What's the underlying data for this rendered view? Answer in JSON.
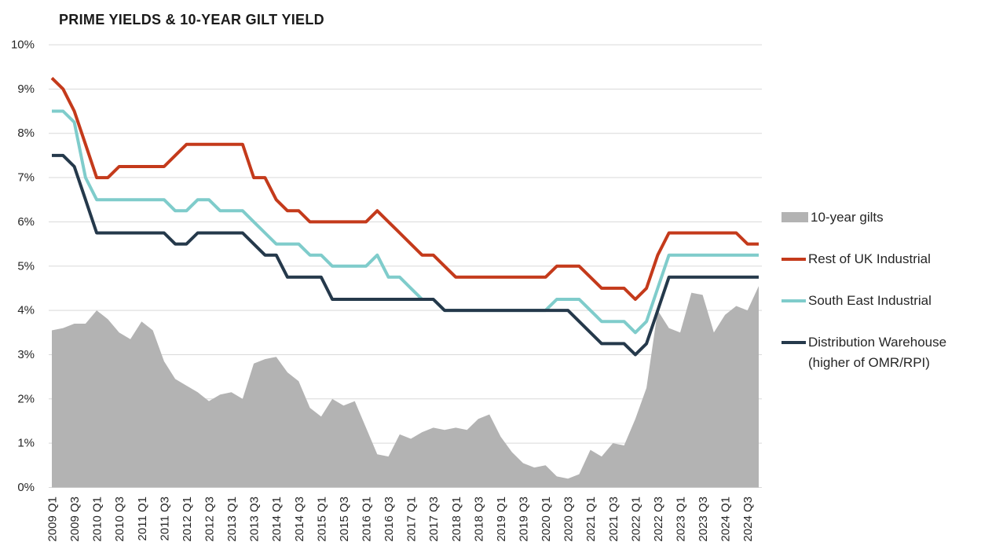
{
  "title": "PRIME YIELDS & 10-YEAR GILT YIELD",
  "colors": {
    "gilts_area": "#b3b3b3",
    "rest_of_uk": "#c43a1b",
    "south_east": "#7fcccb",
    "distribution": "#25394b",
    "gridline": "#d9d9d9",
    "axis_text": "#262626",
    "title_text": "#1a1a1a"
  },
  "legend": {
    "items": [
      {
        "label": "10-year gilts",
        "swatch": "area",
        "color": "#b3b3b3"
      },
      {
        "label": "Rest of UK Industrial",
        "swatch": "line",
        "color": "#c43a1b"
      },
      {
        "label": "South East Industrial",
        "swatch": "line",
        "color": "#7fcccb"
      },
      {
        "label": "Distribution Warehouse\n(higher of OMR/RPI)",
        "swatch": "line",
        "color": "#25394b"
      }
    ]
  },
  "chart_data": {
    "type": "area+line",
    "title": "PRIME YIELDS & 10-YEAR GILT YIELD",
    "ylim": [
      0,
      10
    ],
    "grid": true,
    "legend_position": "right",
    "y_tick_labels": [
      "0%",
      "1%",
      "2%",
      "3%",
      "4%",
      "5%",
      "6%",
      "7%",
      "8%",
      "9%",
      "10%"
    ],
    "x_labels": [
      "2009 Q1",
      "2009 Q3",
      "2010 Q1",
      "2010 Q3",
      "2011 Q1",
      "2011 Q3",
      "2012 Q1",
      "2012 Q3",
      "2013 Q1",
      "2013 Q3",
      "2014 Q1",
      "2014 Q3",
      "2015 Q1",
      "2015 Q3",
      "2016 Q1",
      "2016 Q3",
      "2017 Q1",
      "2017 Q3",
      "2018 Q1",
      "2018 Q3",
      "2019 Q1",
      "2019 Q3",
      "2020 Q1",
      "2020 Q3",
      "2021 Q1",
      "2021 Q3",
      "2022 Q1",
      "2022 Q3",
      "2023 Q1",
      "2023 Q3",
      "2024 Q1",
      "2024 Q3"
    ],
    "x_range_quarterly": "2009 Q1 to 2024 Q4",
    "series": [
      {
        "name": "10-year gilts",
        "type": "area",
        "color": "#b3b3b3",
        "values": [
          3.55,
          3.6,
          3.7,
          3.7,
          4.0,
          3.8,
          3.5,
          3.35,
          3.75,
          3.55,
          2.85,
          2.45,
          2.3,
          2.15,
          1.95,
          2.1,
          2.15,
          2.0,
          2.8,
          2.9,
          2.95,
          2.6,
          2.4,
          1.8,
          1.6,
          2.0,
          1.85,
          1.95,
          1.35,
          0.75,
          0.7,
          1.2,
          1.1,
          1.25,
          1.35,
          1.3,
          1.35,
          1.3,
          1.55,
          1.65,
          1.15,
          0.8,
          0.55,
          0.45,
          0.5,
          0.25,
          0.2,
          0.3,
          0.85,
          0.7,
          1.0,
          0.95,
          1.55,
          2.25,
          4.0,
          3.6,
          3.5,
          4.4,
          4.35,
          3.5,
          3.9,
          4.1,
          4.0,
          4.55
        ]
      },
      {
        "name": "Rest of UK Industrial",
        "type": "line",
        "color": "#c43a1b",
        "values": [
          9.25,
          9.0,
          8.5,
          7.75,
          7.0,
          7.0,
          7.25,
          7.25,
          7.25,
          7.25,
          7.25,
          7.5,
          7.75,
          7.75,
          7.75,
          7.75,
          7.75,
          7.75,
          7.0,
          7.0,
          6.5,
          6.25,
          6.25,
          6.0,
          6.0,
          6.0,
          6.0,
          6.0,
          6.0,
          6.25,
          6.0,
          5.75,
          5.5,
          5.25,
          5.25,
          5.0,
          4.75,
          4.75,
          4.75,
          4.75,
          4.75,
          4.75,
          4.75,
          4.75,
          4.75,
          5.0,
          5.0,
          5.0,
          4.75,
          4.5,
          4.5,
          4.5,
          4.25,
          4.5,
          5.25,
          5.75,
          5.75,
          5.75,
          5.75,
          5.75,
          5.75,
          5.75,
          5.5,
          5.5
        ]
      },
      {
        "name": "South East Industrial",
        "type": "line",
        "color": "#7fcccb",
        "values": [
          8.5,
          8.5,
          8.25,
          7.0,
          6.5,
          6.5,
          6.5,
          6.5,
          6.5,
          6.5,
          6.5,
          6.25,
          6.25,
          6.5,
          6.5,
          6.25,
          6.25,
          6.25,
          6.0,
          5.75,
          5.5,
          5.5,
          5.5,
          5.25,
          5.25,
          5.0,
          5.0,
          5.0,
          5.0,
          5.25,
          4.75,
          4.75,
          4.5,
          4.25,
          4.25,
          4.0,
          4.0,
          4.0,
          4.0,
          4.0,
          4.0,
          4.0,
          4.0,
          4.0,
          4.0,
          4.25,
          4.25,
          4.25,
          4.0,
          3.75,
          3.75,
          3.75,
          3.5,
          3.75,
          4.5,
          5.25,
          5.25,
          5.25,
          5.25,
          5.25,
          5.25,
          5.25,
          5.25,
          5.25
        ]
      },
      {
        "name": "Distribution Warehouse (higher of OMR/RPI)",
        "type": "line",
        "color": "#25394b",
        "values": [
          7.5,
          7.5,
          7.25,
          6.5,
          5.75,
          5.75,
          5.75,
          5.75,
          5.75,
          5.75,
          5.75,
          5.5,
          5.5,
          5.75,
          5.75,
          5.75,
          5.75,
          5.75,
          5.5,
          5.25,
          5.25,
          4.75,
          4.75,
          4.75,
          4.75,
          4.25,
          4.25,
          4.25,
          4.25,
          4.25,
          4.25,
          4.25,
          4.25,
          4.25,
          4.25,
          4.0,
          4.0,
          4.0,
          4.0,
          4.0,
          4.0,
          4.0,
          4.0,
          4.0,
          4.0,
          4.0,
          4.0,
          3.75,
          3.5,
          3.25,
          3.25,
          3.25,
          3.0,
          3.25,
          4.0,
          4.75,
          4.75,
          4.75,
          4.75,
          4.75,
          4.75,
          4.75,
          4.75,
          4.75
        ]
      }
    ]
  }
}
